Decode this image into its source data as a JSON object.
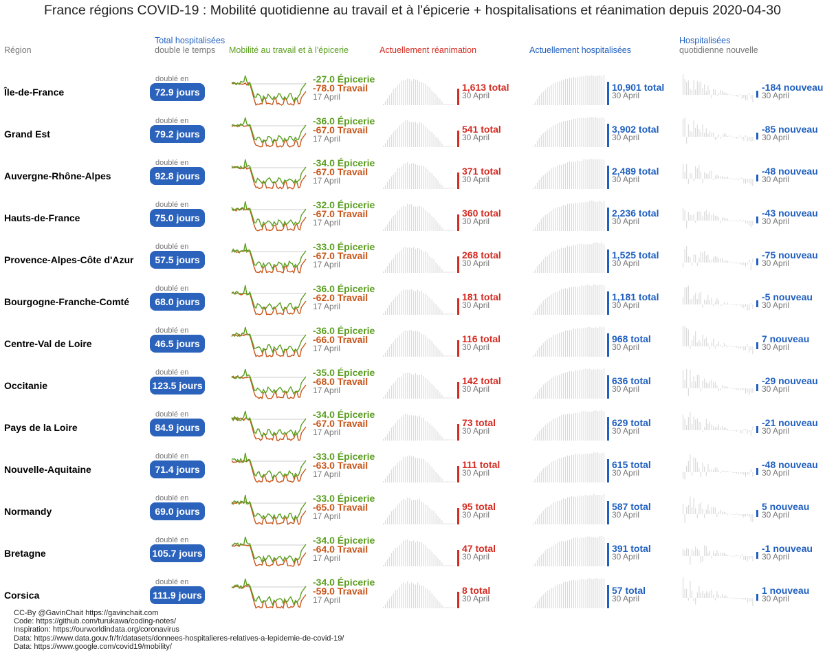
{
  "title": "France régions COVID-19 : Mobilité quotidienne au travail et à l'épicerie + hospitalisations et réanimation depuis 2020-04-30",
  "headers": {
    "region": "Région",
    "doubling_line1": "Total hospitalisées",
    "doubling_line2": "double le temps",
    "mobility": "Mobilité au travail et à l'épicerie",
    "icu": "Actuellement réanimation",
    "hosp": "Actuellement hospitalisées",
    "new_line1": "Hospitalisées",
    "new_line2": "quotidienne nouvelle"
  },
  "labels": {
    "doubled_in": "doublé en",
    "mobility_date": "17 April",
    "data_date": "30 April",
    "grocery_suffix": "Épicerie",
    "work_suffix": "Travail",
    "total_suffix": "total",
    "new_suffix": "nouveau"
  },
  "colors": {
    "grocery": "#5a9e1f",
    "work": "#c8551a",
    "icu": "#d42b21",
    "hosp": "#1f5fbf",
    "pill": "#2a62bc",
    "bars": "#d4d4d4"
  },
  "chart_data": {
    "type": "table",
    "rows": [
      {
        "region": "Île-de-France",
        "doubling": "72.9 jours",
        "grocery": "-27.0",
        "work": "-78.0",
        "icu": "1,613",
        "hosp": "10,901",
        "new": "-184"
      },
      {
        "region": "Grand Est",
        "doubling": "79.2 jours",
        "grocery": "-36.0",
        "work": "-67.0",
        "icu": "541",
        "hosp": "3,902",
        "new": "-85"
      },
      {
        "region": "Auvergne-Rhône-Alpes",
        "doubling": "92.8 jours",
        "grocery": "-34.0",
        "work": "-67.0",
        "icu": "371",
        "hosp": "2,489",
        "new": "-48"
      },
      {
        "region": "Hauts-de-France",
        "doubling": "75.0 jours",
        "grocery": "-32.0",
        "work": "-67.0",
        "icu": "360",
        "hosp": "2,236",
        "new": "-43"
      },
      {
        "region": "Provence-Alpes-Côte d'Azur",
        "doubling": "57.5 jours",
        "grocery": "-33.0",
        "work": "-67.0",
        "icu": "268",
        "hosp": "1,525",
        "new": "-75"
      },
      {
        "region": "Bourgogne-Franche-Comté",
        "doubling": "68.0 jours",
        "grocery": "-36.0",
        "work": "-62.0",
        "icu": "181",
        "hosp": "1,181",
        "new": "-5"
      },
      {
        "region": "Centre-Val de Loire",
        "doubling": "46.5 jours",
        "grocery": "-36.0",
        "work": "-66.0",
        "icu": "116",
        "hosp": "968",
        "new": "7"
      },
      {
        "region": "Occitanie",
        "doubling": "123.5 jours",
        "grocery": "-35.0",
        "work": "-68.0",
        "icu": "142",
        "hosp": "636",
        "new": "-29"
      },
      {
        "region": "Pays de la Loire",
        "doubling": "84.9 jours",
        "grocery": "-34.0",
        "work": "-67.0",
        "icu": "73",
        "hosp": "629",
        "new": "-21"
      },
      {
        "region": "Nouvelle-Aquitaine",
        "doubling": "71.4 jours",
        "grocery": "-33.0",
        "work": "-63.0",
        "icu": "111",
        "hosp": "615",
        "new": "-48"
      },
      {
        "region": "Normandy",
        "doubling": "69.0 jours",
        "grocery": "-33.0",
        "work": "-65.0",
        "icu": "95",
        "hosp": "587",
        "new": "5"
      },
      {
        "region": "Bretagne",
        "doubling": "105.7 jours",
        "grocery": "-34.0",
        "work": "-64.0",
        "icu": "47",
        "hosp": "391",
        "new": "-1"
      },
      {
        "region": "Corsica",
        "doubling": "111.9 jours",
        "grocery": "-34.0",
        "work": "-59.0",
        "icu": "8",
        "hosp": "57",
        "new": "1"
      }
    ]
  },
  "footer": [
    "CC-By @GavinChait https://gavinchait.com",
    "Code: https://github.com/turukawa/coding-notes/",
    "Inspiration: https://ourworldindata.org/coronavirus",
    "Data: https://www.data.gouv.fr/fr/datasets/donnees-hospitalieres-relatives-a-lepidemie-de-covid-19/",
    "Data: https://www.google.com/covid19/mobility/"
  ]
}
